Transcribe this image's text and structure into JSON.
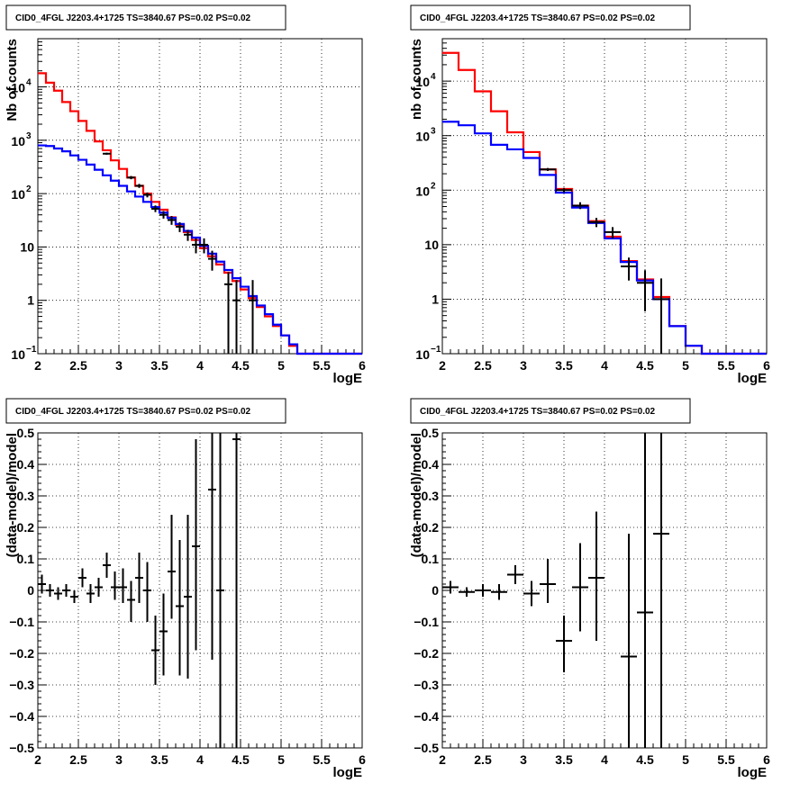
{
  "chart_data": [
    {
      "id": "tl",
      "type": "line",
      "title": "CID0_4FGL J2203.4+1725 TS=3840.67 PS=0.02 PS=0.02",
      "xlabel": "logE",
      "ylabel": "Nb of counts",
      "yscale": "log",
      "xlim": [
        2,
        6
      ],
      "ylim": [
        0.1,
        80000
      ],
      "grid": true,
      "xticks": [
        "2",
        "2.5",
        "3",
        "3.5",
        "4",
        "4.5",
        "5",
        "5.5",
        "6"
      ],
      "yticks": [
        {
          "v": 0.1,
          "t": "10",
          "sup": "−1"
        },
        {
          "v": 1,
          "t": "1"
        },
        {
          "v": 10,
          "t": "10"
        },
        {
          "v": 100,
          "t": "10",
          "sup": "2"
        },
        {
          "v": 1000,
          "t": "10",
          "sup": "3"
        },
        {
          "v": 10000,
          "t": "10",
          "sup": "4"
        }
      ],
      "edges": [
        2.0,
        2.1,
        2.2,
        2.3,
        2.4,
        2.5,
        2.6,
        2.7,
        2.8,
        2.9,
        3.0,
        3.1,
        3.2,
        3.3,
        3.4,
        3.5,
        3.6,
        3.7,
        3.8,
        3.9,
        4.0,
        4.1,
        4.2,
        4.3,
        4.4,
        4.5,
        4.6,
        4.7,
        4.8,
        4.9,
        5.0,
        5.1,
        5.2,
        5.3,
        5.4,
        5.5,
        5.6,
        5.7,
        5.8,
        5.9,
        6.0
      ],
      "series": [
        {
          "color": "#ff0000",
          "values": [
            18000,
            12000,
            8500,
            5200,
            3500,
            2300,
            1500,
            950,
            650,
            420,
            290,
            200,
            140,
            100,
            70,
            50,
            36,
            26,
            19,
            13.5,
            9.5,
            6.7,
            4.7,
            3.3,
            2.3,
            1.6,
            1.1,
            0.75,
            0.5,
            0.33,
            0.22,
            0.14,
            0.1,
            0.1,
            0.1,
            0.1,
            0.1,
            0.1,
            0.1,
            0.1
          ]
        },
        {
          "color": "#0000ff",
          "values": [
            800,
            780,
            700,
            620,
            520,
            430,
            350,
            280,
            220,
            175,
            140,
            110,
            88,
            70,
            56,
            44,
            35,
            27,
            20,
            15,
            10.5,
            7.5,
            5.3,
            3.7,
            2.6,
            1.8,
            1.2,
            0.8,
            0.55,
            0.35,
            0.22,
            0.15,
            0.1,
            0.1,
            0.1,
            0.1,
            0.1,
            0.1,
            0.1,
            0.1
          ]
        }
      ],
      "points": [
        {
          "x": 2.85,
          "y": 560,
          "lo": 535,
          "hi": 585,
          "xerr": 0.05
        },
        {
          "x": 3.15,
          "y": 200,
          "lo": 186,
          "hi": 214,
          "xerr": 0.05
        },
        {
          "x": 3.25,
          "y": 140,
          "lo": 128,
          "hi": 152,
          "xerr": 0.05
        },
        {
          "x": 3.35,
          "y": 95,
          "lo": 85,
          "hi": 105,
          "xerr": 0.05
        },
        {
          "x": 3.45,
          "y": 52,
          "lo": 45,
          "hi": 60,
          "xerr": 0.05
        },
        {
          "x": 3.55,
          "y": 40,
          "lo": 34,
          "hi": 47,
          "xerr": 0.05
        },
        {
          "x": 3.65,
          "y": 32,
          "lo": 26,
          "hi": 38,
          "xerr": 0.05
        },
        {
          "x": 3.75,
          "y": 24,
          "lo": 19,
          "hi": 29,
          "xerr": 0.05
        },
        {
          "x": 3.85,
          "y": 17,
          "lo": 13,
          "hi": 21,
          "xerr": 0.05
        },
        {
          "x": 3.95,
          "y": 11,
          "lo": 7.6,
          "hi": 14.5,
          "xerr": 0.05
        },
        {
          "x": 4.05,
          "y": 11,
          "lo": 7.6,
          "hi": 14.5,
          "xerr": 0.05
        },
        {
          "x": 4.15,
          "y": 6,
          "lo": 3.6,
          "hi": 8.5,
          "xerr": 0.05
        },
        {
          "x": 4.35,
          "y": 2,
          "lo": 0.1,
          "hi": 3.4,
          "xerr": 0.05
        },
        {
          "x": 4.45,
          "y": 1,
          "lo": 0.1,
          "hi": 2.4,
          "xerr": 0.05
        },
        {
          "x": 4.65,
          "y": 1,
          "lo": 0.1,
          "hi": 2.4,
          "xerr": 0.05
        }
      ]
    },
    {
      "id": "tr",
      "type": "line",
      "title": "CID0_4FGL J2203.4+1725 TS=3840.67 PS=0.02 PS=0.02",
      "xlabel": "logE",
      "ylabel": "nb of counts",
      "yscale": "log",
      "xlim": [
        2,
        6
      ],
      "ylim": [
        0.1,
        60000
      ],
      "grid": true,
      "xticks": [
        "2",
        "2.5",
        "3",
        "3.5",
        "4",
        "4.5",
        "5",
        "5.5",
        "6"
      ],
      "yticks": [
        {
          "v": 0.1,
          "t": "10",
          "sup": "−1"
        },
        {
          "v": 1,
          "t": "1"
        },
        {
          "v": 10,
          "t": "10"
        },
        {
          "v": 100,
          "t": "10",
          "sup": "2"
        },
        {
          "v": 1000,
          "t": "10",
          "sup": "3"
        },
        {
          "v": 10000,
          "t": "10",
          "sup": "4"
        }
      ],
      "edges": [
        2.0,
        2.2,
        2.4,
        2.6,
        2.8,
        3.0,
        3.2,
        3.4,
        3.6,
        3.8,
        4.0,
        4.2,
        4.4,
        4.6,
        4.8,
        5.0,
        5.2,
        5.4,
        5.6,
        5.8,
        6.0
      ],
      "series": [
        {
          "color": "#ff0000",
          "values": [
            33000,
            16000,
            6500,
            2800,
            1150,
            500,
            240,
            105,
            52,
            27,
            14,
            5,
            2.3,
            1.1,
            0.32,
            0.14,
            0.1,
            0.1,
            0.1,
            0.1
          ]
        },
        {
          "color": "#0000ff",
          "values": [
            1800,
            1550,
            1100,
            680,
            560,
            390,
            190,
            90,
            48,
            25,
            13,
            4.8,
            2.2,
            1.0,
            0.32,
            0.14,
            0.1,
            0.1,
            0.1,
            0.1
          ]
        }
      ],
      "points": [
        {
          "x": 3.3,
          "y": 240,
          "lo": 225,
          "hi": 255,
          "xerr": 0.1
        },
        {
          "x": 3.5,
          "y": 100,
          "lo": 90,
          "hi": 110,
          "xerr": 0.1
        },
        {
          "x": 3.7,
          "y": 52,
          "lo": 45,
          "hi": 60,
          "xerr": 0.1
        },
        {
          "x": 3.9,
          "y": 26,
          "lo": 21,
          "hi": 31,
          "xerr": 0.1
        },
        {
          "x": 4.1,
          "y": 17,
          "lo": 13,
          "hi": 21,
          "xerr": 0.1
        },
        {
          "x": 4.3,
          "y": 4,
          "lo": 2.2,
          "hi": 5.8,
          "xerr": 0.1
        },
        {
          "x": 4.5,
          "y": 2,
          "lo": 0.6,
          "hi": 3.4,
          "xerr": 0.1
        },
        {
          "x": 4.7,
          "y": 1,
          "lo": 0.1,
          "hi": 2.4,
          "xerr": 0.1
        }
      ]
    },
    {
      "id": "bl",
      "type": "scatter",
      "title": "CID0_4FGL J2203.4+1725 TS=3840.67 PS=0.02 PS=0.02",
      "xlabel": "logE",
      "ylabel": "(data-model)/model",
      "yscale": "linear",
      "xlim": [
        2,
        6
      ],
      "ylim": [
        -0.5,
        0.5
      ],
      "grid": true,
      "xticks": [
        "2",
        "2.5",
        "3",
        "3.5",
        "4",
        "4.5",
        "5",
        "5.5",
        "6"
      ],
      "yticks": [
        {
          "v": -0.5,
          "t": "−0.5"
        },
        {
          "v": -0.4,
          "t": "−0.4"
        },
        {
          "v": -0.3,
          "t": "−0.3"
        },
        {
          "v": -0.2,
          "t": "−0.2"
        },
        {
          "v": -0.1,
          "t": "−0.1"
        },
        {
          "v": 0,
          "t": "0"
        },
        {
          "v": 0.1,
          "t": "0.1"
        },
        {
          "v": 0.2,
          "t": "0.2"
        },
        {
          "v": 0.3,
          "t": "0.3"
        },
        {
          "v": 0.4,
          "t": "0.4"
        },
        {
          "v": 0.5,
          "t": "0.5"
        }
      ],
      "points": [
        {
          "x": 2.05,
          "y": 0.02,
          "lo": -0.01,
          "hi": 0.05,
          "xerr": 0.05
        },
        {
          "x": 2.15,
          "y": 0.0,
          "lo": -0.02,
          "hi": 0.02,
          "xerr": 0.05
        },
        {
          "x": 2.25,
          "y": -0.01,
          "lo": -0.03,
          "hi": 0.01,
          "xerr": 0.05
        },
        {
          "x": 2.35,
          "y": 0.0,
          "lo": -0.02,
          "hi": 0.02,
          "xerr": 0.05
        },
        {
          "x": 2.45,
          "y": -0.02,
          "lo": -0.04,
          "hi": 0.0,
          "xerr": 0.05
        },
        {
          "x": 2.55,
          "y": 0.04,
          "lo": 0.01,
          "hi": 0.07,
          "xerr": 0.05
        },
        {
          "x": 2.65,
          "y": -0.01,
          "lo": -0.04,
          "hi": 0.02,
          "xerr": 0.05
        },
        {
          "x": 2.75,
          "y": 0.01,
          "lo": -0.02,
          "hi": 0.04,
          "xerr": 0.05
        },
        {
          "x": 2.85,
          "y": 0.08,
          "lo": 0.04,
          "hi": 0.12,
          "xerr": 0.05
        },
        {
          "x": 2.95,
          "y": 0.01,
          "lo": -0.03,
          "hi": 0.06,
          "xerr": 0.05
        },
        {
          "x": 3.05,
          "y": 0.01,
          "lo": -0.04,
          "hi": 0.07,
          "xerr": 0.05
        },
        {
          "x": 3.15,
          "y": -0.03,
          "lo": -0.1,
          "hi": 0.03,
          "xerr": 0.05
        },
        {
          "x": 3.25,
          "y": 0.04,
          "lo": -0.04,
          "hi": 0.12,
          "xerr": 0.05
        },
        {
          "x": 3.35,
          "y": 0.0,
          "lo": -0.1,
          "hi": 0.09,
          "xerr": 0.05
        },
        {
          "x": 3.45,
          "y": -0.19,
          "lo": -0.3,
          "hi": -0.08,
          "xerr": 0.05
        },
        {
          "x": 3.55,
          "y": -0.13,
          "lo": -0.27,
          "hi": -0.01,
          "xerr": 0.05
        },
        {
          "x": 3.65,
          "y": 0.06,
          "lo": -0.09,
          "hi": 0.24,
          "xerr": 0.05
        },
        {
          "x": 3.75,
          "y": -0.05,
          "lo": -0.27,
          "hi": 0.16,
          "xerr": 0.05
        },
        {
          "x": 3.85,
          "y": -0.02,
          "lo": -0.28,
          "hi": 0.24,
          "xerr": 0.05
        },
        {
          "x": 3.95,
          "y": 0.14,
          "lo": -0.19,
          "hi": 0.48,
          "xerr": 0.05
        },
        {
          "x": 4.15,
          "y": 0.32,
          "lo": -0.22,
          "hi": 0.5,
          "xerr": 0.05
        },
        {
          "x": 4.25,
          "y": 0.0,
          "lo": -0.5,
          "hi": 0.5,
          "xerr": 0.05
        },
        {
          "x": 4.45,
          "y": 0.48,
          "lo": -0.5,
          "hi": 0.5,
          "xerr": 0.05
        }
      ]
    },
    {
      "id": "br",
      "type": "scatter",
      "title": "CID0_4FGL J2203.4+1725 TS=3840.67 PS=0.02 PS=0.02",
      "xlabel": "logE",
      "ylabel": "(data-model)/model",
      "yscale": "linear",
      "xlim": [
        2,
        6
      ],
      "ylim": [
        -0.5,
        0.5
      ],
      "grid": true,
      "xticks": [
        "2",
        "2.5",
        "3",
        "3.5",
        "4",
        "4.5",
        "5",
        "5.5",
        "6"
      ],
      "yticks": [
        {
          "v": -0.5,
          "t": "−0.5"
        },
        {
          "v": -0.4,
          "t": "−0.4"
        },
        {
          "v": -0.3,
          "t": "−0.3"
        },
        {
          "v": -0.2,
          "t": "−0.2"
        },
        {
          "v": -0.1,
          "t": "−0.1"
        },
        {
          "v": 0,
          "t": "0"
        },
        {
          "v": 0.1,
          "t": "0.1"
        },
        {
          "v": 0.2,
          "t": "0.2"
        },
        {
          "v": 0.3,
          "t": "0.3"
        },
        {
          "v": 0.4,
          "t": "0.4"
        },
        {
          "v": 0.5,
          "t": "0.5"
        }
      ],
      "points": [
        {
          "x": 2.1,
          "y": 0.01,
          "lo": -0.01,
          "hi": 0.03,
          "xerr": 0.1
        },
        {
          "x": 2.3,
          "y": -0.005,
          "lo": -0.02,
          "hi": 0.01,
          "xerr": 0.1
        },
        {
          "x": 2.5,
          "y": 0.0,
          "lo": -0.02,
          "hi": 0.02,
          "xerr": 0.1
        },
        {
          "x": 2.7,
          "y": -0.005,
          "lo": -0.03,
          "hi": 0.02,
          "xerr": 0.1
        },
        {
          "x": 2.9,
          "y": 0.05,
          "lo": 0.02,
          "hi": 0.08,
          "xerr": 0.1
        },
        {
          "x": 3.1,
          "y": -0.01,
          "lo": -0.05,
          "hi": 0.03,
          "xerr": 0.1
        },
        {
          "x": 3.3,
          "y": 0.02,
          "lo": -0.04,
          "hi": 0.1,
          "xerr": 0.1
        },
        {
          "x": 3.5,
          "y": -0.16,
          "lo": -0.26,
          "hi": -0.08,
          "xerr": 0.1
        },
        {
          "x": 3.7,
          "y": 0.01,
          "lo": -0.13,
          "hi": 0.15,
          "xerr": 0.1
        },
        {
          "x": 3.9,
          "y": 0.04,
          "lo": -0.16,
          "hi": 0.25,
          "xerr": 0.1
        },
        {
          "x": 4.3,
          "y": -0.21,
          "lo": -0.5,
          "hi": 0.18,
          "xerr": 0.1
        },
        {
          "x": 4.5,
          "y": -0.07,
          "lo": -0.5,
          "hi": 0.5,
          "xerr": 0.1
        },
        {
          "x": 4.7,
          "y": 0.18,
          "lo": -0.5,
          "hi": 0.5,
          "xerr": 0.1
        }
      ]
    }
  ]
}
